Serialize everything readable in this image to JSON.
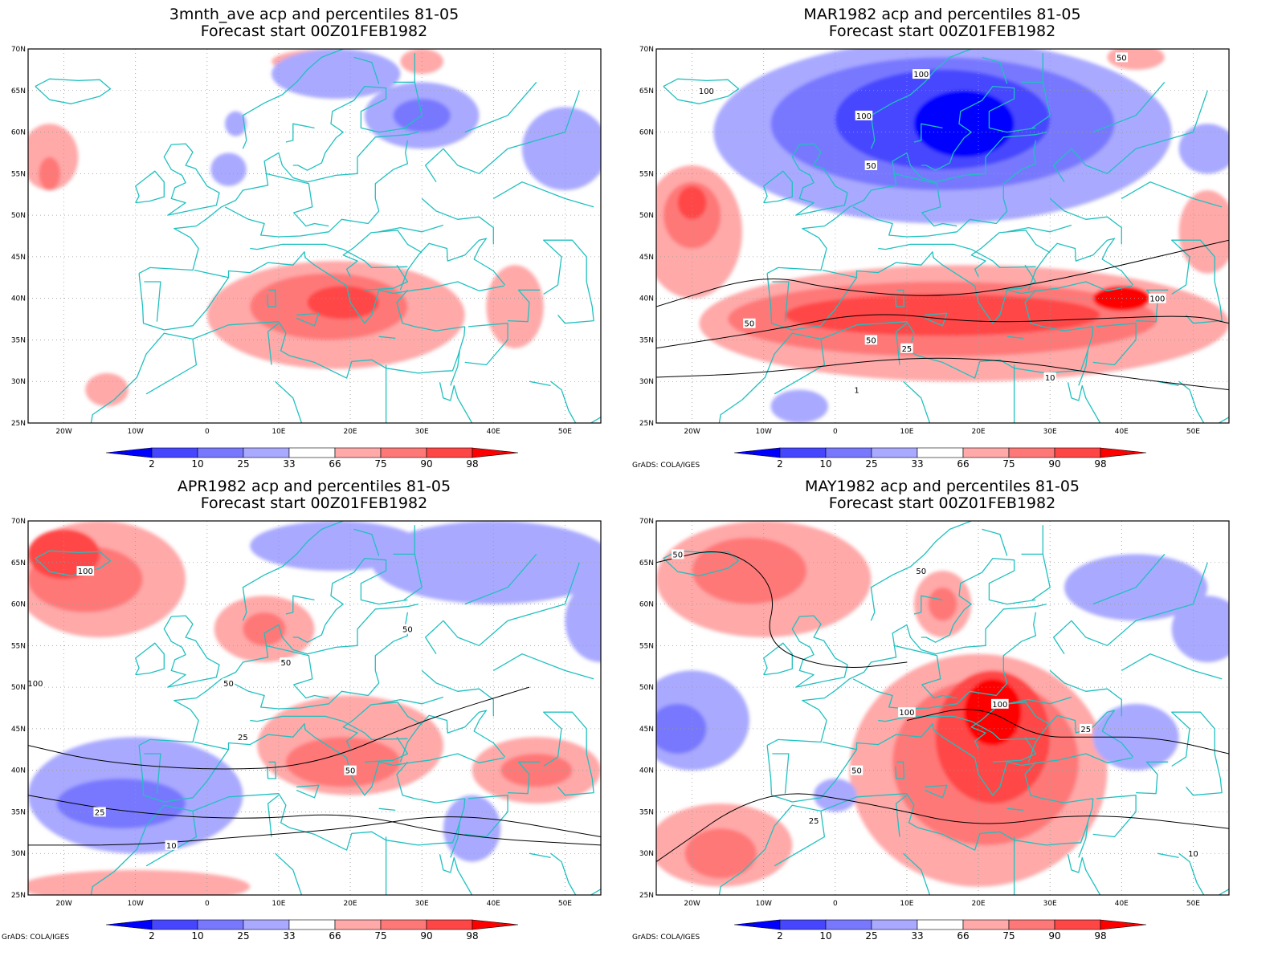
{
  "colors": {
    "blue3": "#0000ff",
    "blue2": "#4646ff",
    "blue1": "#7878ff",
    "blue0": "#a9a9ff",
    "red0": "#ffa9a9",
    "red1": "#ff7878",
    "red2": "#ff4646",
    "red3": "#ff0000",
    "coast": "#20c0c0",
    "contour": "#000000",
    "grid": "#9a9a9a"
  },
  "axes": {
    "lat_labels": [
      "70N",
      "65N",
      "60N",
      "55N",
      "50N",
      "45N",
      "40N",
      "35N",
      "30N",
      "25N"
    ],
    "lon_labels": [
      "20W",
      "10W",
      "0",
      "10E",
      "20E",
      "30E",
      "40E",
      "50E"
    ]
  },
  "colorbar": {
    "labels": [
      "2",
      "10",
      "25",
      "33",
      "66",
      "75",
      "90",
      "98"
    ]
  },
  "credit": "GrADS: COLA/IGES",
  "panels": [
    {
      "id": "p1",
      "title_line1": "3mnth_ave acp and percentiles 81-05",
      "title_line2": "Forecast start 00Z01FEB1982",
      "show_credit": false,
      "blobs": [
        {
          "c": "red0",
          "lon": 18,
          "lat": 38,
          "rx": 18,
          "ry": 6.5
        },
        {
          "c": "red1",
          "lon": 17,
          "lat": 39,
          "rx": 11,
          "ry": 4
        },
        {
          "c": "red2",
          "lon": 19,
          "lat": 39.5,
          "rx": 5,
          "ry": 2
        },
        {
          "c": "red0",
          "lon": -22,
          "lat": 57,
          "rx": 4,
          "ry": 4
        },
        {
          "c": "red1",
          "lon": -22,
          "lat": 55,
          "rx": 1.5,
          "ry": 2
        },
        {
          "c": "red0",
          "lon": 43,
          "lat": 39,
          "rx": 4,
          "ry": 5
        },
        {
          "c": "red0",
          "lon": -14,
          "lat": 29,
          "rx": 3,
          "ry": 2
        },
        {
          "c": "red0",
          "lon": 17,
          "lat": 68.5,
          "rx": 8,
          "ry": 1.5
        },
        {
          "c": "red0",
          "lon": 30,
          "lat": 68.5,
          "rx": 3,
          "ry": 1.5
        },
        {
          "c": "blue0",
          "lon": 30,
          "lat": 62,
          "rx": 8,
          "ry": 4
        },
        {
          "c": "blue1",
          "lon": 30,
          "lat": 62,
          "rx": 4,
          "ry": 2
        },
        {
          "c": "blue0",
          "lon": 50,
          "lat": 58,
          "rx": 6,
          "ry": 5
        },
        {
          "c": "blue0",
          "lon": 18,
          "lat": 67,
          "rx": 9,
          "ry": 3
        },
        {
          "c": "blue0",
          "lon": 4,
          "lat": 61,
          "rx": 1.5,
          "ry": 1.5
        },
        {
          "c": "blue0",
          "lon": 3,
          "lat": 55.5,
          "rx": 2.5,
          "ry": 2
        }
      ],
      "contours": [],
      "contour_labels": []
    },
    {
      "id": "p2",
      "title_line1": "MAR1982 acp and percentiles 81-05",
      "title_line2": "Forecast start 00Z01FEB1982",
      "show_credit": true,
      "blobs": [
        {
          "c": "blue0",
          "lon": 15,
          "lat": 60,
          "rx": 32,
          "ry": 11
        },
        {
          "c": "blue1",
          "lon": 15,
          "lat": 61,
          "rx": 24,
          "ry": 8
        },
        {
          "c": "blue2",
          "lon": 15,
          "lat": 61.5,
          "rx": 15,
          "ry": 6
        },
        {
          "c": "blue3",
          "lon": 18,
          "lat": 61,
          "rx": 7,
          "ry": 4
        },
        {
          "c": "red0",
          "lon": 18,
          "lat": 37,
          "rx": 37,
          "ry": 7
        },
        {
          "c": "red1",
          "lon": 15,
          "lat": 37.5,
          "rx": 30,
          "ry": 4.5
        },
        {
          "c": "red2",
          "lon": 15,
          "lat": 38,
          "rx": 22,
          "ry": 2.5
        },
        {
          "c": "red3",
          "lon": 40,
          "lat": 40,
          "rx": 4,
          "ry": 1.5
        },
        {
          "c": "red0",
          "lon": -20,
          "lat": 48,
          "rx": 7,
          "ry": 8
        },
        {
          "c": "red1",
          "lon": -20,
          "lat": 50,
          "rx": 4,
          "ry": 4
        },
        {
          "c": "red2",
          "lon": -20,
          "lat": 51.5,
          "rx": 2,
          "ry": 2
        },
        {
          "c": "red0",
          "lon": 52,
          "lat": 48,
          "rx": 4,
          "ry": 5
        },
        {
          "c": "red0",
          "lon": 42,
          "lat": 69,
          "rx": 4,
          "ry": 1.5
        },
        {
          "c": "blue0",
          "lon": -5,
          "lat": 27,
          "rx": 4,
          "ry": 2
        },
        {
          "c": "blue0",
          "lon": 52,
          "lat": 58,
          "rx": 4,
          "ry": 3
        }
      ],
      "contours": [
        {
          "pts": [
            [
              -25,
              30.5
            ],
            [
              -10,
              31
            ],
            [
              10,
              33
            ],
            [
              25,
              32.5
            ],
            [
              40,
              30.5
            ],
            [
              55,
              29
            ]
          ]
        },
        {
          "pts": [
            [
              -25,
              34
            ],
            [
              -10,
              36
            ],
            [
              5,
              38.5
            ],
            [
              20,
              37
            ],
            [
              35,
              37.5
            ],
            [
              50,
              38
            ],
            [
              55,
              37
            ]
          ]
        },
        {
          "pts": [
            [
              -25,
              39
            ],
            [
              -10,
              43
            ],
            [
              0,
              41
            ],
            [
              15,
              40
            ],
            [
              30,
              42
            ],
            [
              45,
              45
            ],
            [
              55,
              47
            ]
          ]
        }
      ],
      "contour_labels": [
        {
          "t": "100",
          "lon": -18,
          "lat": 65
        },
        {
          "t": "100",
          "lon": 4,
          "lat": 62
        },
        {
          "t": "100",
          "lon": 12,
          "lat": 67
        },
        {
          "t": "50",
          "lon": 5,
          "lat": 56
        },
        {
          "t": "50",
          "lon": 40,
          "lat": 69
        },
        {
          "t": "50",
          "lon": -12,
          "lat": 37
        },
        {
          "t": "50",
          "lon": 5,
          "lat": 35
        },
        {
          "t": "25",
          "lon": 10,
          "lat": 34
        },
        {
          "t": "10",
          "lon": 30,
          "lat": 30.5
        },
        {
          "t": "1",
          "lon": 3,
          "lat": 29
        },
        {
          "t": "100",
          "lon": 45,
          "lat": 40
        }
      ]
    },
    {
      "id": "p3",
      "title_line1": "APR1982 acp and percentiles 81-05",
      "title_line2": "Forecast start 00Z01FEB1982",
      "show_credit": true,
      "blobs": [
        {
          "c": "red0",
          "lon": -15,
          "lat": 63,
          "rx": 12,
          "ry": 7
        },
        {
          "c": "red1",
          "lon": -17,
          "lat": 63,
          "rx": 8,
          "ry": 4
        },
        {
          "c": "red2",
          "lon": -20,
          "lat": 66,
          "rx": 5,
          "ry": 3
        },
        {
          "c": "red0",
          "lon": 20,
          "lat": 43,
          "rx": 13,
          "ry": 6
        },
        {
          "c": "red1",
          "lon": 19,
          "lat": 41,
          "rx": 8,
          "ry": 3
        },
        {
          "c": "red0",
          "lon": 8,
          "lat": 57,
          "rx": 7,
          "ry": 4
        },
        {
          "c": "red1",
          "lon": 8,
          "lat": 57,
          "rx": 3,
          "ry": 2
        },
        {
          "c": "red0",
          "lon": 46,
          "lat": 40,
          "rx": 9,
          "ry": 4
        },
        {
          "c": "red1",
          "lon": 46,
          "lat": 40,
          "rx": 5,
          "ry": 2
        },
        {
          "c": "red0",
          "lon": -10,
          "lat": 26,
          "rx": 16,
          "ry": 2
        },
        {
          "c": "blue0",
          "lon": -10,
          "lat": 37,
          "rx": 15,
          "ry": 7
        },
        {
          "c": "blue1",
          "lon": -12,
          "lat": 36,
          "rx": 9,
          "ry": 3
        },
        {
          "c": "blue0",
          "lon": 40,
          "lat": 65,
          "rx": 17,
          "ry": 5
        },
        {
          "c": "blue0",
          "lon": 55,
          "lat": 58,
          "rx": 5,
          "ry": 5
        },
        {
          "c": "blue0",
          "lon": 18,
          "lat": 67,
          "rx": 12,
          "ry": 3
        },
        {
          "c": "blue0",
          "lon": 37,
          "lat": 33,
          "rx": 4,
          "ry": 4
        }
      ],
      "contours": [
        {
          "pts": [
            [
              -25,
              37
            ],
            [
              -12,
              35
            ],
            [
              5,
              34
            ],
            [
              20,
              35
            ],
            [
              35,
              32
            ],
            [
              55,
              31
            ]
          ]
        },
        {
          "pts": [
            [
              -25,
              31
            ],
            [
              -10,
              31
            ],
            [
              5,
              32
            ],
            [
              20,
              33
            ],
            [
              35,
              35
            ],
            [
              55,
              32
            ]
          ]
        },
        {
          "pts": [
            [
              -25,
              43
            ],
            [
              -15,
              41
            ],
            [
              0,
              40
            ],
            [
              15,
              40.5
            ],
            [
              30,
              46
            ],
            [
              45,
              50
            ]
          ]
        }
      ],
      "contour_labels": [
        {
          "t": "100",
          "lon": -17,
          "lat": 64
        },
        {
          "t": "100",
          "lon": -24,
          "lat": 50.5
        },
        {
          "t": "50",
          "lon": 3,
          "lat": 50.5
        },
        {
          "t": "50",
          "lon": 11,
          "lat": 53
        },
        {
          "t": "50",
          "lon": 28,
          "lat": 57
        },
        {
          "t": "50",
          "lon": 20,
          "lat": 40
        },
        {
          "t": "25",
          "lon": -15,
          "lat": 35
        },
        {
          "t": "10",
          "lon": -5,
          "lat": 31
        },
        {
          "t": "25",
          "lon": 5,
          "lat": 44
        }
      ]
    },
    {
      "id": "p4",
      "title_line1": "MAY1982 acp and percentiles 81-05",
      "title_line2": "Forecast start 00Z01FEB1982",
      "show_credit": true,
      "blobs": [
        {
          "c": "red0",
          "lon": 20,
          "lat": 40,
          "rx": 18,
          "ry": 14
        },
        {
          "c": "red1",
          "lon": 21,
          "lat": 41,
          "rx": 13,
          "ry": 10
        },
        {
          "c": "red2",
          "lon": 22,
          "lat": 44,
          "rx": 8,
          "ry": 8
        },
        {
          "c": "red3",
          "lon": 22,
          "lat": 47,
          "rx": 4,
          "ry": 4
        },
        {
          "c": "red0",
          "lon": -16,
          "lat": 31,
          "rx": 10,
          "ry": 5
        },
        {
          "c": "red1",
          "lon": -16,
          "lat": 30,
          "rx": 5,
          "ry": 3
        },
        {
          "c": "red0",
          "lon": -10,
          "lat": 63,
          "rx": 15,
          "ry": 7
        },
        {
          "c": "red1",
          "lon": -12,
          "lat": 64,
          "rx": 8,
          "ry": 4
        },
        {
          "c": "red0",
          "lon": 15,
          "lat": 60,
          "rx": 4,
          "ry": 4
        },
        {
          "c": "red1",
          "lon": 15,
          "lat": 60,
          "rx": 2,
          "ry": 2
        },
        {
          "c": "blue0",
          "lon": -20,
          "lat": 46,
          "rx": 8,
          "ry": 6
        },
        {
          "c": "blue1",
          "lon": -22,
          "lat": 45,
          "rx": 4,
          "ry": 3
        },
        {
          "c": "blue0",
          "lon": 42,
          "lat": 62,
          "rx": 10,
          "ry": 4
        },
        {
          "c": "blue0",
          "lon": 52,
          "lat": 57,
          "rx": 5,
          "ry": 4
        },
        {
          "c": "blue0",
          "lon": 42,
          "lat": 44,
          "rx": 6,
          "ry": 4
        },
        {
          "c": "blue0",
          "lon": 0,
          "lat": 37,
          "rx": 3,
          "ry": 2
        }
      ],
      "contours": [
        {
          "pts": [
            [
              -25,
              29
            ],
            [
              -10,
              38
            ],
            [
              5,
              36
            ],
            [
              20,
              33
            ],
            [
              35,
              35
            ],
            [
              55,
              33
            ]
          ]
        },
        {
          "pts": [
            [
              -25,
              65
            ],
            [
              -15,
              67
            ],
            [
              -8,
              62
            ],
            [
              -10,
              55
            ],
            [
              0,
              52
            ],
            [
              10,
              53
            ]
          ]
        },
        {
          "pts": [
            [
              10,
              46
            ],
            [
              20,
              48
            ],
            [
              28,
              44
            ],
            [
              35,
              44
            ],
            [
              45,
              44
            ],
            [
              55,
              42
            ]
          ]
        }
      ],
      "contour_labels": [
        {
          "t": "50",
          "lon": -22,
          "lat": 66
        },
        {
          "t": "50",
          "lon": 12,
          "lat": 64
        },
        {
          "t": "100",
          "lon": 23,
          "lat": 48
        },
        {
          "t": "100",
          "lon": 10,
          "lat": 47
        },
        {
          "t": "50",
          "lon": 3,
          "lat": 40
        },
        {
          "t": "25",
          "lon": -3,
          "lat": 34
        },
        {
          "t": "25",
          "lon": 35,
          "lat": 45
        },
        {
          "t": "10",
          "lon": 50,
          "lat": 30
        }
      ]
    }
  ]
}
